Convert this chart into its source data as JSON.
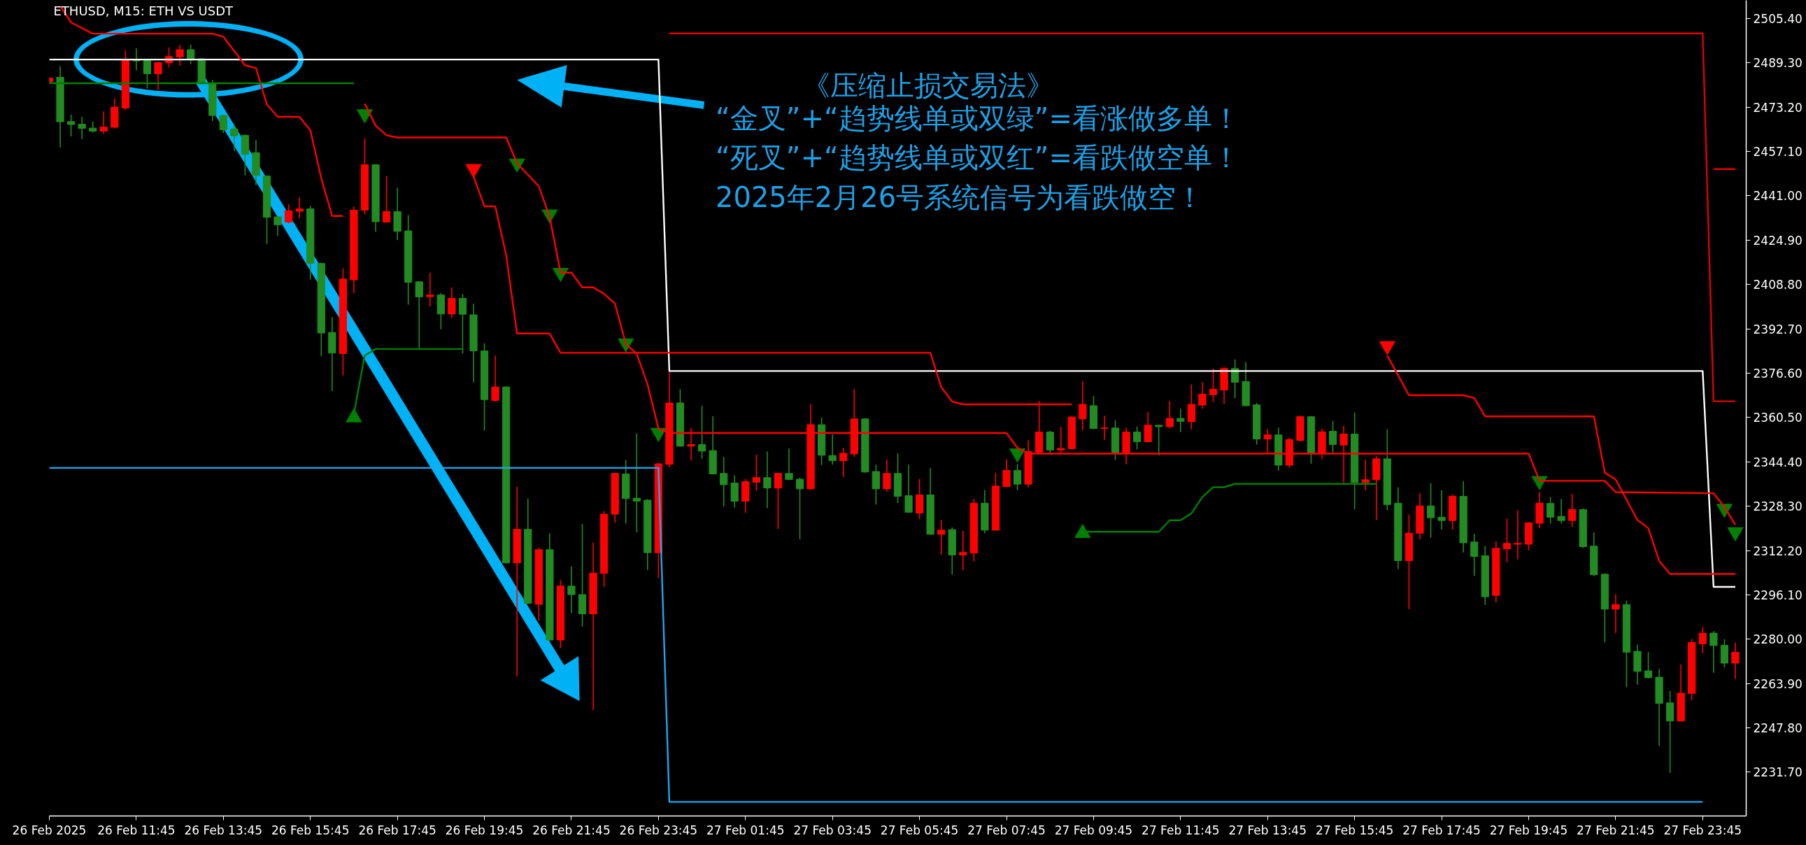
{
  "chart_data": {
    "type": "candlestick",
    "title": "ETHUSD, M15:  ETH VS USDT",
    "annotations": [
      "《压缩止损交易法》",
      "“金叉”+“趋势线单或双绿”=看涨做多单！",
      "“死叉”+“趋势线单或双红”=看跌做空单！",
      "2025年2月26号系统信号为看跌做空！"
    ],
    "x": [
      "2025-02-26T09:45",
      "2025-02-26T10:00",
      "2025-02-26T10:15",
      "2025-02-26T10:30",
      "2025-02-26T10:45",
      "2025-02-26T11:00",
      "2025-02-26T11:15",
      "2025-02-26T11:30",
      "2025-02-26T11:45",
      "2025-02-26T12:00",
      "2025-02-26T12:15",
      "2025-02-26T12:30",
      "2025-02-26T12:45",
      "2025-02-26T13:00",
      "2025-02-26T13:15",
      "2025-02-26T13:30",
      "2025-02-26T13:45",
      "2025-02-26T14:00",
      "2025-02-26T14:15",
      "2025-02-26T14:30",
      "2025-02-26T14:45",
      "2025-02-26T15:00",
      "2025-02-26T15:15",
      "2025-02-26T15:30",
      "2025-02-26T15:45",
      "2025-02-26T16:00",
      "2025-02-26T16:15",
      "2025-02-26T16:30",
      "2025-02-26T16:45",
      "2025-02-26T17:00",
      "2025-02-26T17:15",
      "2025-02-26T17:30",
      "2025-02-26T17:45",
      "2025-02-26T18:00",
      "2025-02-26T18:15",
      "2025-02-26T18:30",
      "2025-02-26T18:45",
      "2025-02-26T19:00",
      "2025-02-26T19:15",
      "2025-02-26T19:30",
      "2025-02-26T19:45",
      "2025-02-26T20:00",
      "2025-02-26T20:15",
      "2025-02-26T20:30",
      "2025-02-26T20:45",
      "2025-02-26T21:00",
      "2025-02-26T21:15",
      "2025-02-26T21:30",
      "2025-02-26T21:45",
      "2025-02-26T22:00",
      "2025-02-26T22:15",
      "2025-02-26T22:30",
      "2025-02-26T22:45",
      "2025-02-26T23:00",
      "2025-02-26T23:15",
      "2025-02-26T23:30",
      "2025-02-26T23:45",
      "2025-02-27T00:00",
      "2025-02-27T00:15",
      "2025-02-27T00:30",
      "2025-02-27T00:45",
      "2025-02-27T01:00",
      "2025-02-27T01:15",
      "2025-02-27T01:30",
      "2025-02-27T01:45",
      "2025-02-27T02:00",
      "2025-02-27T02:15",
      "2025-02-27T02:30",
      "2025-02-27T02:45",
      "2025-02-27T03:00",
      "2025-02-27T03:15",
      "2025-02-27T03:30",
      "2025-02-27T03:45",
      "2025-02-27T04:00",
      "2025-02-27T04:15",
      "2025-02-27T04:30",
      "2025-02-27T04:45",
      "2025-02-27T05:00",
      "2025-02-27T05:15",
      "2025-02-27T05:30",
      "2025-02-27T05:45",
      "2025-02-27T06:00",
      "2025-02-27T06:15",
      "2025-02-27T06:30",
      "2025-02-27T06:45",
      "2025-02-27T07:00",
      "2025-02-27T07:15",
      "2025-02-27T07:30",
      "2025-02-27T07:45",
      "2025-02-27T08:00",
      "2025-02-27T08:15",
      "2025-02-27T08:30",
      "2025-02-27T08:45",
      "2025-02-27T09:00",
      "2025-02-27T09:15",
      "2025-02-27T09:30",
      "2025-02-27T09:45",
      "2025-02-27T10:00",
      "2025-02-27T10:15",
      "2025-02-27T10:30",
      "2025-02-27T10:45",
      "2025-02-27T11:00",
      "2025-02-27T11:15",
      "2025-02-27T11:30",
      "2025-02-27T11:45",
      "2025-02-27T12:00",
      "2025-02-27T12:15",
      "2025-02-27T12:30",
      "2025-02-27T12:45",
      "2025-02-27T13:00",
      "2025-02-27T13:15",
      "2025-02-27T13:30",
      "2025-02-27T13:45",
      "2025-02-27T14:00",
      "2025-02-27T14:15",
      "2025-02-27T14:30",
      "2025-02-27T14:45",
      "2025-02-27T15:00",
      "2025-02-27T15:15",
      "2025-02-27T15:30",
      "2025-02-27T15:45",
      "2025-02-27T16:00",
      "2025-02-27T16:15",
      "2025-02-27T16:30",
      "2025-02-27T16:45",
      "2025-02-27T17:00",
      "2025-02-27T17:15",
      "2025-02-27T17:30",
      "2025-02-27T17:45",
      "2025-02-27T18:00",
      "2025-02-27T18:15",
      "2025-02-27T18:30",
      "2025-02-27T18:45",
      "2025-02-27T19:00",
      "2025-02-27T19:15",
      "2025-02-27T19:30",
      "2025-02-27T19:45",
      "2025-02-27T20:00",
      "2025-02-27T20:15",
      "2025-02-27T20:30",
      "2025-02-27T20:45",
      "2025-02-27T21:00",
      "2025-02-27T21:15",
      "2025-02-27T21:30",
      "2025-02-27T21:45",
      "2025-02-27T22:00",
      "2025-02-27T22:15",
      "2025-02-27T22:30",
      "2025-02-27T22:45",
      "2025-02-27T23:00",
      "2025-02-27T23:15",
      "2025-02-27T23:30",
      "2025-02-27T23:45",
      "2025-02-28T00:00",
      "2025-02-28T00:15",
      "2025-02-28T00:30"
    ],
    "ohlc": [
      [
        2482.4,
        2484.0,
        2481.5,
        2483.8
      ],
      [
        2484.1,
        2488.1,
        2458.6,
        2467.9
      ],
      [
        2468.0,
        2470.5,
        2462.6,
        2466.9
      ],
      [
        2467.0,
        2469.7,
        2461.6,
        2465.5
      ],
      [
        2465.6,
        2468.0,
        2464.0,
        2464.5
      ],
      [
        2464.5,
        2471.7,
        2463.5,
        2466.0
      ],
      [
        2465.9,
        2476.4,
        2465.6,
        2473.2
      ],
      [
        2472.9,
        2493.9,
        2472.2,
        2490.3
      ],
      [
        2490.3,
        2494.6,
        2486.6,
        2490.0
      ],
      [
        2490.3,
        2490.5,
        2480.0,
        2485.3
      ],
      [
        2485.3,
        2489.6,
        2479.5,
        2489.4
      ],
      [
        2489.3,
        2494.9,
        2487.6,
        2491.6
      ],
      [
        2491.5,
        2495.9,
        2488.3,
        2494.1
      ],
      [
        2494.1,
        2495.9,
        2488.8,
        2490.8
      ],
      [
        2490.8,
        2491.0,
        2481.6,
        2482.0
      ],
      [
        2481.7,
        2483.1,
        2468.2,
        2470.2
      ],
      [
        2470.2,
        2470.4,
        2463.8,
        2465.0
      ],
      [
        2465.3,
        2467.0,
        2457.3,
        2462.8
      ],
      [
        2463.0,
        2463.2,
        2448.4,
        2456.1
      ],
      [
        2456.7,
        2461.3,
        2444.9,
        2448.4
      ],
      [
        2448.2,
        2448.4,
        2423.5,
        2433.2
      ],
      [
        2433.4,
        2433.6,
        2426.5,
        2430.5
      ],
      [
        2431.5,
        2437.9,
        2431.0,
        2435.6
      ],
      [
        2435.4,
        2440.4,
        2432.9,
        2436.3
      ],
      [
        2436.3,
        2437.4,
        2410.6,
        2416.5
      ],
      [
        2416.5,
        2416.7,
        2382.8,
        2391.2
      ],
      [
        2391.4,
        2396.9,
        2370.1,
        2383.9
      ],
      [
        2383.7,
        2414.6,
        2375.8,
        2410.8
      ],
      [
        2410.5,
        2437.1,
        2405.7,
        2435.8
      ],
      [
        2435.8,
        2461.9,
        2434.4,
        2452.3
      ],
      [
        2452.3,
        2452.5,
        2428.0,
        2431.6
      ],
      [
        2431.5,
        2448.2,
        2431.3,
        2435.3
      ],
      [
        2435.3,
        2444.0,
        2424.9,
        2428.1
      ],
      [
        2428.3,
        2434.0,
        2401.5,
        2409.6
      ],
      [
        2409.8,
        2410.0,
        2385.6,
        2404.3
      ],
      [
        2404.4,
        2413.1,
        2400.8,
        2405.0
      ],
      [
        2405.0,
        2405.7,
        2392.5,
        2398.1
      ],
      [
        2398.1,
        2407.7,
        2396.7,
        2403.8
      ],
      [
        2403.8,
        2405.4,
        2383.7,
        2398.0
      ],
      [
        2397.8,
        2401.9,
        2373.3,
        2384.7
      ],
      [
        2384.7,
        2387.5,
        2355.8,
        2367.0
      ],
      [
        2366.7,
        2383.0,
        2366.3,
        2371.6
      ],
      [
        2371.6,
        2371.9,
        2307.5,
        2307.7
      ],
      [
        2307.7,
        2335.3,
        2266.5,
        2319.9
      ],
      [
        2319.9,
        2331.1,
        2292.8,
        2293.0
      ],
      [
        2292.7,
        2313.2,
        2286.7,
        2312.5
      ],
      [
        2312.5,
        2318.4,
        2279.5,
        2279.7
      ],
      [
        2279.7,
        2301.4,
        2276.7,
        2299.3
      ],
      [
        2299.3,
        2306.5,
        2289.5,
        2296.2
      ],
      [
        2296.2,
        2321.9,
        2284.6,
        2289.2
      ],
      [
        2289.2,
        2315.1,
        2254.2,
        2304.0
      ],
      [
        2303.9,
        2326.5,
        2299.0,
        2325.4
      ],
      [
        2325.4,
        2340.4,
        2322.3,
        2340.2
      ],
      [
        2340.0,
        2345.1,
        2322.0,
        2331.1
      ],
      [
        2331.2,
        2354.8,
        2318.8,
        2330.1
      ],
      [
        2330.5,
        2330.9,
        2305.1,
        2311.4
      ],
      [
        2311.4,
        2344.0,
        2302.2,
        2343.7
      ],
      [
        2343.5,
        2377.2,
        2342.4,
        2365.8
      ],
      [
        2365.8,
        2370.8,
        2349.9,
        2350.1
      ],
      [
        2350.1,
        2356.7,
        2344.9,
        2350.7
      ],
      [
        2350.7,
        2364.8,
        2345.5,
        2348.3
      ],
      [
        2348.5,
        2361.0,
        2339.8,
        2340.0
      ],
      [
        2340.2,
        2346.2,
        2328.2,
        2336.1
      ],
      [
        2336.7,
        2339.5,
        2327.8,
        2330.1
      ],
      [
        2330.1,
        2338.2,
        2325.9,
        2337.2
      ],
      [
        2337.0,
        2347.0,
        2333.9,
        2338.7
      ],
      [
        2338.7,
        2348.2,
        2327.6,
        2334.9
      ],
      [
        2334.9,
        2340.4,
        2320.1,
        2340.2
      ],
      [
        2340.2,
        2349.2,
        2337.8,
        2338.0
      ],
      [
        2338.1,
        2338.7,
        2316.3,
        2334.6
      ],
      [
        2334.6,
        2365.3,
        2334.2,
        2357.9
      ],
      [
        2357.9,
        2360.5,
        2343.2,
        2346.8
      ],
      [
        2346.7,
        2354.4,
        2343.4,
        2344.8
      ],
      [
        2344.8,
        2349.5,
        2338.9,
        2347.5
      ],
      [
        2347.3,
        2370.8,
        2346.2,
        2360.0
      ],
      [
        2360.0,
        2360.2,
        2340.5,
        2340.7
      ],
      [
        2340.9,
        2343.4,
        2328.9,
        2334.6
      ],
      [
        2334.6,
        2345.2,
        2333.6,
        2340.2
      ],
      [
        2340.2,
        2347.5,
        2329.4,
        2331.9
      ],
      [
        2332.1,
        2343.4,
        2325.9,
        2326.1
      ],
      [
        2325.8,
        2338.2,
        2323.7,
        2332.4
      ],
      [
        2332.4,
        2342.2,
        2317.9,
        2318.1
      ],
      [
        2318.1,
        2323.3,
        2310.8,
        2319.6
      ],
      [
        2319.8,
        2320.6,
        2303.5,
        2310.6
      ],
      [
        2310.6,
        2319.3,
        2305.1,
        2311.5
      ],
      [
        2311.3,
        2330.9,
        2308.2,
        2329.4
      ],
      [
        2329.4,
        2334.1,
        2318.4,
        2319.6
      ],
      [
        2319.6,
        2340.4,
        2319.4,
        2335.6
      ],
      [
        2335.4,
        2345.3,
        2335.2,
        2341.3
      ],
      [
        2341.3,
        2343.6,
        2334.1,
        2336.3
      ],
      [
        2336.3,
        2352.2,
        2335.1,
        2348.1
      ],
      [
        2347.8,
        2366.5,
        2347.7,
        2355.2
      ],
      [
        2355.2,
        2355.7,
        2347.7,
        2348.7
      ],
      [
        2348.7,
        2357.2,
        2347.7,
        2349.3
      ],
      [
        2349.2,
        2361.0,
        2349.0,
        2360.7
      ],
      [
        2360.0,
        2373.6,
        2355.9,
        2365.3
      ],
      [
        2364.8,
        2368.3,
        2356.3,
        2356.5
      ],
      [
        2356.5,
        2361.2,
        2352.4,
        2356.7
      ],
      [
        2356.7,
        2359.5,
        2345.1,
        2347.7
      ],
      [
        2347.4,
        2356.7,
        2343.6,
        2355.2
      ],
      [
        2355.2,
        2357.2,
        2348.9,
        2351.7
      ],
      [
        2351.7,
        2362.5,
        2351.5,
        2357.7
      ],
      [
        2357.7,
        2357.9,
        2346.7,
        2357.2
      ],
      [
        2357.2,
        2366.5,
        2356.5,
        2360.2
      ],
      [
        2360.2,
        2363.7,
        2355.2,
        2359.1
      ],
      [
        2359.0,
        2372.5,
        2356.2,
        2365.3
      ],
      [
        2365.0,
        2373.3,
        2363.7,
        2369.0
      ],
      [
        2368.8,
        2378.3,
        2366.2,
        2370.8
      ],
      [
        2370.5,
        2378.8,
        2365.5,
        2378.3
      ],
      [
        2378.3,
        2381.6,
        2367.5,
        2373.3
      ],
      [
        2373.6,
        2380.6,
        2364.6,
        2364.8
      ],
      [
        2365.1,
        2365.8,
        2350.7,
        2352.7
      ],
      [
        2352.7,
        2356.3,
        2347.7,
        2354.2
      ],
      [
        2354.2,
        2356.8,
        2341.2,
        2343.2
      ],
      [
        2343.2,
        2353.2,
        2342.2,
        2352.5
      ],
      [
        2352.2,
        2361.3,
        2351.7,
        2360.8
      ],
      [
        2360.8,
        2361.0,
        2343.7,
        2347.7
      ],
      [
        2347.7,
        2356.5,
        2345.4,
        2355.3
      ],
      [
        2355.5,
        2359.3,
        2347.7,
        2350.7
      ],
      [
        2350.5,
        2357.5,
        2336.7,
        2354.5
      ],
      [
        2354.5,
        2362.3,
        2327.1,
        2336.9
      ],
      [
        2336.9,
        2345.2,
        2334.1,
        2337.9
      ],
      [
        2337.9,
        2346.5,
        2323.3,
        2345.5
      ],
      [
        2345.5,
        2356.3,
        2326.8,
        2328.9
      ],
      [
        2329.4,
        2335.1,
        2305.5,
        2308.5
      ],
      [
        2308.5,
        2325.3,
        2290.9,
        2318.5
      ],
      [
        2318.5,
        2333.1,
        2316.3,
        2328.4
      ],
      [
        2328.4,
        2336.7,
        2316.8,
        2324.1
      ],
      [
        2324.3,
        2334.1,
        2319.8,
        2323.1
      ],
      [
        2323.1,
        2332.6,
        2319.8,
        2331.9
      ],
      [
        2331.9,
        2337.4,
        2311.5,
        2315.0
      ],
      [
        2315.3,
        2318.3,
        2303.0,
        2310.0
      ],
      [
        2310.3,
        2313.8,
        2292.4,
        2295.4
      ],
      [
        2295.9,
        2315.5,
        2293.4,
        2313.0
      ],
      [
        2312.8,
        2323.8,
        2308.0,
        2314.8
      ],
      [
        2314.5,
        2326.8,
        2309.0,
        2314.8
      ],
      [
        2314.5,
        2322.5,
        2312.3,
        2322.3
      ],
      [
        2322.1,
        2333.4,
        2320.3,
        2329.4
      ],
      [
        2329.3,
        2331.6,
        2322.0,
        2324.3
      ],
      [
        2324.6,
        2330.9,
        2322.0,
        2323.1
      ],
      [
        2323.1,
        2332.7,
        2320.9,
        2327.1
      ],
      [
        2327.1,
        2327.5,
        2313.1,
        2313.6
      ],
      [
        2313.8,
        2318.8,
        2302.9,
        2303.4
      ],
      [
        2303.6,
        2303.8,
        2278.8,
        2290.9
      ],
      [
        2290.9,
        2296.3,
        2282.2,
        2292.6
      ],
      [
        2292.6,
        2294.0,
        2262.6,
        2275.3
      ],
      [
        2275.6,
        2278.0,
        2263.5,
        2268.3
      ],
      [
        2268.5,
        2275.3,
        2265.8,
        2266.0
      ],
      [
        2266.2,
        2269.2,
        2241.2,
        2256.7
      ],
      [
        2256.9,
        2261.2,
        2231.4,
        2250.3
      ],
      [
        2250.3,
        2270.8,
        2250.1,
        2260.4
      ],
      [
        2260.3,
        2280.1,
        2257.8,
        2278.8
      ],
      [
        2278.3,
        2284.4,
        2274.9,
        2282.2
      ],
      [
        2282.2,
        2282.9,
        2267.8,
        2277.7
      ],
      [
        2277.8,
        2280.0,
        2269.7,
        2271.3
      ],
      [
        2271.3,
        2278.8,
        2265.6,
        2275.3
      ]
    ],
    "colors": [
      "#ff0000",
      "#228b22",
      "#228b22",
      "#228b22",
      "#228b22",
      "#ff0000",
      "#ff0000",
      "#ff0000",
      "#228b22",
      "#228b22",
      "#ff0000",
      "#ff0000",
      "#ff0000",
      "#228b22",
      "#228b22",
      "#228b22",
      "#228b22",
      "#228b22",
      "#228b22",
      "#228b22",
      "#228b22",
      "#228b22",
      "#ff0000",
      "#ff0000",
      "#228b22",
      "#228b22",
      "#228b22",
      "#ff0000",
      "#ff0000",
      "#ff0000",
      "#228b22",
      "#ff0000",
      "#228b22",
      "#228b22",
      "#228b22",
      "#ff0000",
      "#228b22",
      "#ff0000",
      "#228b22",
      "#228b22",
      "#228b22",
      "#ff0000",
      "#228b22",
      "#ff0000",
      "#228b22",
      "#ff0000",
      "#228b22",
      "#ff0000",
      "#228b22",
      "#228b22",
      "#ff0000",
      "#ff0000",
      "#ff0000",
      "#228b22",
      "#228b22",
      "#228b22",
      "#ff0000",
      "#ff0000",
      "#228b22",
      "#ff0000",
      "#228b22",
      "#228b22",
      "#228b22",
      "#228b22",
      "#ff0000",
      "#ff0000",
      "#228b22",
      "#ff0000",
      "#228b22",
      "#228b22",
      "#ff0000",
      "#228b22",
      "#228b22",
      "#ff0000",
      "#ff0000",
      "#228b22",
      "#228b22",
      "#ff0000",
      "#228b22",
      "#228b22",
      "#ff0000",
      "#228b22",
      "#ff0000",
      "#228b22",
      "#ff0000",
      "#ff0000",
      "#228b22",
      "#ff0000",
      "#ff0000",
      "#228b22",
      "#ff0000",
      "#ff0000",
      "#228b22",
      "#ff0000",
      "#ff0000",
      "#ff0000",
      "#228b22",
      "#ff0000",
      "#228b22",
      "#ff0000",
      "#228b22",
      "#ff0000",
      "#228b22",
      "#ff0000",
      "#228b22",
      "#ff0000",
      "#ff0000",
      "#ff0000",
      "#ff0000",
      "#228b22",
      "#228b22",
      "#228b22",
      "#ff0000",
      "#228b22",
      "#ff0000",
      "#ff0000",
      "#228b22",
      "#ff0000",
      "#228b22",
      "#ff0000",
      "#228b22",
      "#ff0000",
      "#ff0000",
      "#228b22",
      "#228b22",
      "#ff0000",
      "#ff0000",
      "#228b22",
      "#228b22",
      "#ff0000",
      "#228b22",
      "#228b22",
      "#228b22",
      "#ff0000",
      "#ff0000",
      "#ff0000",
      "#ff0000",
      "#ff0000",
      "#228b22",
      "#228b22",
      "#ff0000",
      "#228b22",
      "#228b22",
      "#228b22",
      "#ff0000",
      "#228b22",
      "#228b22",
      "#228b22",
      "#228b22",
      "#228b22",
      "#ff0000",
      "#ff0000",
      "#ff0000",
      "#228b22",
      "#228b22",
      "#ff0000"
    ],
    "series": [
      {
        "type": "line",
        "color": "#ffffff",
        "x": [
          "2025-02-26T09:45",
          "2025-02-26T23:45",
          "2025-02-27T00:00",
          "2025-02-27T23:45",
          "2025-02-28T00:00",
          "2025-02-28T00:30"
        ],
        "values": [
          2490.5,
          2490.5,
          2377.4,
          2377.4,
          2299.0,
          2299.0
        ]
      },
      {
        "type": "line",
        "color": "#1ea7f0",
        "x": [
          "2025-02-26T09:45",
          "2025-02-26T23:45",
          "2025-02-27T00:00",
          "2025-02-27T23:45"
        ],
        "values": [
          2342.2,
          2342.2,
          2220.9,
          2220.9
        ]
      },
      {
        "type": "line",
        "color": "#e00000",
        "x": [
          "2025-02-27T00:00",
          "2025-02-27T23:45",
          "2025-02-28T00:00",
          "2025-02-28T00:30"
        ],
        "values": [
          2500.0,
          2500.0,
          2366.4,
          2366.4
        ]
      },
      {
        "type": "line",
        "color": "#e00000",
        "x": [
          "2025-02-28T00:00",
          "2025-02-28T00:30"
        ],
        "values": [
          2450.7,
          2450.7
        ]
      },
      {
        "type": "line",
        "color": "#ff0000",
        "x": [
          "2025-02-26T10:00",
          "2025-02-26T10:15",
          "2025-02-26T10:45",
          "2025-02-26T13:30",
          "2025-02-26T13:45",
          "2025-02-26T14:15",
          "2025-02-26T14:30",
          "2025-02-26T14:45",
          "2025-02-26T15:00",
          "2025-02-26T15:30",
          "2025-02-26T15:45",
          "2025-02-26T16:00",
          "2025-02-26T16:15",
          "2025-02-26T16:30"
        ],
        "values": [
          2510.0,
          2504.0,
          2499.9,
          2499.9,
          2498.8,
          2488.4,
          2487.4,
          2474.2,
          2469.7,
          2469.7,
          2464.8,
          2447.4,
          2433.7,
          2433.7
        ]
      },
      {
        "type": "line",
        "color": "#ff0000",
        "x": [
          "2025-02-26T17:00",
          "2025-02-26T17:15",
          "2025-02-26T17:30",
          "2025-02-26T17:45",
          "2025-02-26T20:15",
          "2025-02-26T20:30",
          "2025-02-26T21:00",
          "2025-02-26T21:15",
          "2025-02-26T21:30",
          "2025-02-26T21:45",
          "2025-02-26T22:00",
          "2025-02-26T22:15",
          "2025-02-26T22:30",
          "2025-02-26T22:45",
          "2025-02-26T23:00",
          "2025-02-26T23:15",
          "2025-02-26T23:30",
          "2025-02-26T23:45",
          "2025-02-27T00:00",
          "2025-02-27T07:45",
          "2025-02-27T08:00",
          "2025-02-27T08:15",
          "2025-02-27T19:45",
          "2025-02-27T20:00",
          "2025-02-27T21:30",
          "2025-02-27T21:45",
          "2025-02-28T00:00",
          "2025-02-28T00:15",
          "2025-02-28T00:30"
        ],
        "values": [
          2474.5,
          2466.5,
          2463.0,
          2462.2,
          2462.2,
          2452.8,
          2444.5,
          2433.3,
          2413.1,
          2413.1,
          2407.8,
          2407.8,
          2405.4,
          2401.9,
          2387.2,
          2383.7,
          2372.5,
          2356.5,
          2354.9,
          2354.9,
          2349.5,
          2347.4,
          2347.4,
          2337.5,
          2337.5,
          2333.4,
          2333.0,
          2328.0,
          2321.5
        ]
      },
      {
        "type": "line",
        "color": "#ff0000",
        "x": [
          "2025-02-26T19:30",
          "2025-02-26T19:45",
          "2025-02-26T20:00",
          "2025-02-26T20:15",
          "2025-02-26T20:30",
          "2025-02-26T21:15",
          "2025-02-26T21:30",
          "2025-02-27T06:00",
          "2025-02-27T06:15",
          "2025-02-27T06:30",
          "2025-02-27T06:45",
          "2025-02-27T09:15"
        ],
        "values": [
          2448.0,
          2437.2,
          2437.2,
          2419.4,
          2391.0,
          2391.0,
          2384.0,
          2384.0,
          2371.5,
          2366.3,
          2365.3,
          2365.3
        ]
      },
      {
        "type": "line",
        "color": "#ff0000",
        "x": [
          "2025-02-27T16:30",
          "2025-02-27T16:45",
          "2025-02-27T17:00",
          "2025-02-27T18:15",
          "2025-02-27T18:30",
          "2025-02-27T18:45",
          "2025-02-27T21:15",
          "2025-02-27T21:30",
          "2025-02-27T21:45",
          "2025-02-27T22:15",
          "2025-02-27T22:30",
          "2025-02-27T22:45",
          "2025-02-27T23:00",
          "2025-02-28T00:30"
        ],
        "values": [
          2383.0,
          2375.8,
          2368.6,
          2368.6,
          2367.6,
          2360.9,
          2360.9,
          2340.5,
          2338.0,
          2323.3,
          2320.3,
          2308.4,
          2303.7,
          2303.7
        ]
      },
      {
        "type": "line",
        "color": "#008000",
        "x": [
          "2025-02-26T09:45",
          "2025-02-26T16:45"
        ],
        "values": [
          2481.9,
          2481.9
        ]
      },
      {
        "type": "line",
        "color": "#008000",
        "x": [
          "2025-02-26T16:45",
          "2025-02-26T17:00",
          "2025-02-26T17:15",
          "2025-02-26T19:15"
        ],
        "values": [
          2362.0,
          2383.0,
          2385.4,
          2385.4
        ]
      },
      {
        "type": "line",
        "color": "#008000",
        "x": [
          "2025-02-27T09:30",
          "2025-02-27T11:15",
          "2025-02-27T11:30",
          "2025-02-27T11:45",
          "2025-02-27T12:00",
          "2025-02-27T12:15",
          "2025-02-27T12:30",
          "2025-02-27T12:45",
          "2025-02-27T13:00",
          "2025-02-27T16:15"
        ],
        "values": [
          2319.0,
          2319.0,
          2323.2,
          2323.2,
          2325.7,
          2331.6,
          2335.2,
          2335.2,
          2336.4,
          2336.4
        ]
      },
      {
        "type": "scatter",
        "marker": "triangle",
        "color": "#008000",
        "x": [
          "2025-02-26T17:00",
          "2025-02-26T20:30",
          "2025-02-26T21:15",
          "2025-02-26T21:30",
          "2025-02-26T23:00",
          "2025-02-26T23:45",
          "2025-02-27T08:00",
          "2025-02-27T20:00",
          "2025-02-28T00:15",
          "2025-02-28T00:30"
        ],
        "values": [
          2470.7,
          2452.8,
          2434.3,
          2413.1,
          2387.5,
          2355.0,
          2347.5,
          2337.5,
          2327.4,
          2318.9
        ]
      },
      {
        "type": "scatter",
        "marker": "triangle",
        "color": "#ff0000",
        "x": [
          "2025-02-26T19:30",
          "2025-02-27T16:30"
        ],
        "values": [
          2450.8,
          2386.5
        ]
      },
      {
        "type": "scatter",
        "marker": "triangle",
        "color": "#008000",
        "x": [
          "2025-02-26T16:45",
          "2025-02-27T09:30"
        ],
        "values": [
          2360.5,
          2318.5
        ]
      }
    ],
    "xlim": [
      "2025-02-26T09:45",
      "2025-02-28T00:45"
    ],
    "ylim": [
      2215.8,
      2512.0
    ],
    "xticks": [
      {
        "value": "2025-02-26T09:45",
        "label": "26 Feb 2025"
      },
      {
        "value": "2025-02-26T11:45",
        "label": "26 Feb 11:45"
      },
      {
        "value": "2025-02-26T13:45",
        "label": "26 Feb 13:45"
      },
      {
        "value": "2025-02-26T15:45",
        "label": "26 Feb 15:45"
      },
      {
        "value": "2025-02-26T17:45",
        "label": "26 Feb 17:45"
      },
      {
        "value": "2025-02-26T19:45",
        "label": "26 Feb 19:45"
      },
      {
        "value": "2025-02-26T21:45",
        "label": "26 Feb 21:45"
      },
      {
        "value": "2025-02-26T23:45",
        "label": "26 Feb 23:45"
      },
      {
        "value": "2025-02-27T01:45",
        "label": "27 Feb 01:45"
      },
      {
        "value": "2025-02-27T03:45",
        "label": "27 Feb 03:45"
      },
      {
        "value": "2025-02-27T05:45",
        "label": "27 Feb 05:45"
      },
      {
        "value": "2025-02-27T07:45",
        "label": "27 Feb 07:45"
      },
      {
        "value": "2025-02-27T09:45",
        "label": "27 Feb 09:45"
      },
      {
        "value": "2025-02-27T11:45",
        "label": "27 Feb 11:45"
      },
      {
        "value": "2025-02-27T13:45",
        "label": "27 Feb 13:45"
      },
      {
        "value": "2025-02-27T15:45",
        "label": "27 Feb 15:45"
      },
      {
        "value": "2025-02-27T17:45",
        "label": "27 Feb 17:45"
      },
      {
        "value": "2025-02-27T19:45",
        "label": "27 Feb 19:45"
      },
      {
        "value": "2025-02-27T21:45",
        "label": "27 Feb 21:45"
      },
      {
        "value": "2025-02-27T23:45",
        "label": "27 Feb 23:45"
      }
    ],
    "yticks": [
      {
        "value": 2231.7,
        "label": "2231.70"
      },
      {
        "value": 2247.8,
        "label": "2247.80"
      },
      {
        "value": 2263.9,
        "label": "2263.90"
      },
      {
        "value": 2280.0,
        "label": "2280.00"
      },
      {
        "value": 2296.1,
        "label": "2296.10"
      },
      {
        "value": 2312.2,
        "label": "2312.20"
      },
      {
        "value": 2328.3,
        "label": "2328.30"
      },
      {
        "value": 2344.4,
        "label": "2344.40"
      },
      {
        "value": 2360.5,
        "label": "2360.50"
      },
      {
        "value": 2376.6,
        "label": "2376.60"
      },
      {
        "value": 2392.7,
        "label": "2392.70"
      },
      {
        "value": 2408.8,
        "label": "2408.80"
      },
      {
        "value": 2424.9,
        "label": "2424.90"
      },
      {
        "value": 2441.0,
        "label": "2441.00"
      },
      {
        "value": 2457.1,
        "label": "2457.10"
      },
      {
        "value": 2473.2,
        "label": "2473.20"
      },
      {
        "value": 2489.3,
        "label": "2489.30"
      },
      {
        "value": 2505.4,
        "label": "2505.40"
      }
    ],
    "grid": false
  }
}
